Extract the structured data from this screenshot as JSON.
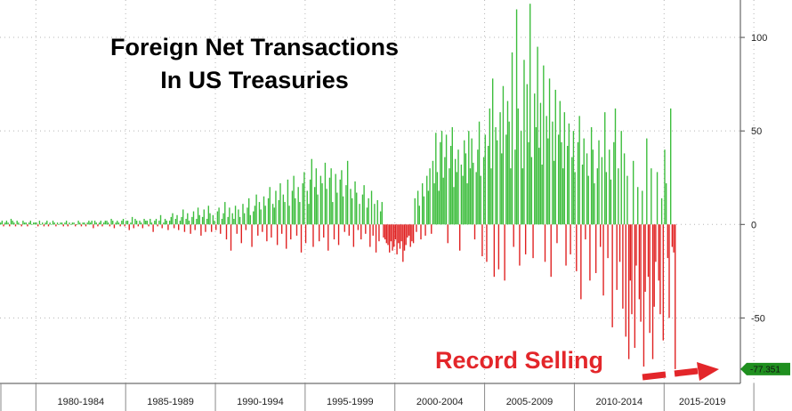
{
  "chart_data": {
    "type": "bar",
    "title": "Foreign Net Transactions\nIn US Treasuries",
    "title_lines": [
      "Foreign Net Transactions",
      "In US Treasuries"
    ],
    "xlabel": "",
    "ylabel": "",
    "ylim": [
      -85,
      120
    ],
    "y_ticks": [
      100,
      50,
      0,
      -50
    ],
    "y_tick_labels": [
      "100",
      "50",
      "0",
      "-50"
    ],
    "x_period_labels": [
      "1980-1984",
      "1985-1989",
      "1990-1994",
      "1995-1999",
      "2000-2004",
      "2005-2009",
      "2010-2014",
      "2015-2019"
    ],
    "x_start_year": 1978,
    "x_end_year": 2019.25,
    "grid": true,
    "positive_color": "#3cbd3c",
    "negative_color": "#e02020",
    "last_value": -77.351,
    "last_value_label": "-77.351",
    "last_value_color": "#1f8f1f",
    "annotation": {
      "text": "Record Selling",
      "color": "#e3262a"
    },
    "series": [
      {
        "frequency": "monthly",
        "start": "1978-01",
        "values": [
          1,
          2,
          -1,
          1,
          2,
          1,
          -1,
          3,
          2,
          1,
          -1,
          2,
          1,
          0,
          -1,
          2,
          1,
          1,
          -1,
          1,
          2,
          0,
          1,
          1,
          1,
          -1,
          2,
          0,
          1,
          -1,
          1,
          2,
          -1,
          1,
          0,
          2,
          1,
          -1,
          1,
          0,
          1,
          1,
          -1,
          1,
          2,
          -1,
          1,
          0,
          1,
          1,
          -1,
          0,
          2,
          1,
          -1,
          1,
          1,
          -1,
          1,
          2,
          1,
          2,
          -2,
          2,
          1,
          -1,
          1,
          2,
          -1,
          1,
          2,
          2,
          1,
          -1,
          3,
          2,
          -2,
          1,
          2,
          1,
          -1,
          2,
          3,
          -1,
          2,
          2,
          -3,
          1,
          4,
          -2,
          3,
          2,
          -1,
          2,
          1,
          -2,
          3,
          2,
          2,
          -1,
          3,
          1,
          -4,
          2,
          3,
          -1,
          2,
          5,
          -2,
          1,
          3,
          2,
          -3,
          2,
          4,
          6,
          -2,
          3,
          5,
          -3,
          2,
          4,
          8,
          -4,
          3,
          6,
          2,
          -5,
          4,
          7,
          -3,
          3,
          9,
          5,
          -6,
          4,
          8,
          -4,
          3,
          10,
          6,
          -4,
          5,
          2,
          -3,
          7,
          9,
          -5,
          3,
          6,
          12,
          -8,
          4,
          9,
          -14,
          6,
          3,
          10,
          -5,
          8,
          4,
          -10,
          11,
          6,
          -3,
          9,
          14,
          5,
          -12,
          7,
          10,
          16,
          -6,
          12,
          8,
          -4,
          15,
          10,
          -9,
          14,
          20,
          -7,
          11,
          9,
          18,
          -11,
          13,
          22,
          -5,
          16,
          12,
          -13,
          24,
          10,
          -8,
          18,
          26,
          14,
          -6,
          20,
          12,
          -15,
          22,
          28,
          -10,
          18,
          11,
          24,
          35,
          -12,
          20,
          30,
          16,
          -9,
          26,
          22,
          -7,
          33,
          19,
          -14,
          25,
          30,
          12,
          -8,
          27,
          17,
          -11,
          24,
          29,
          15,
          -4,
          21,
          34,
          -6,
          19,
          14,
          -12,
          23,
          17,
          -3,
          11,
          -8,
          16,
          21,
          -5,
          9,
          14,
          -12,
          18,
          -6,
          11,
          -15,
          13,
          -9,
          7,
          12,
          -7,
          -8,
          -10,
          -11,
          -15,
          -9,
          -14,
          -12,
          -8,
          -16,
          -10,
          -13,
          -9,
          -20,
          -14,
          -11,
          -7,
          -6,
          -12,
          -9,
          -10,
          14,
          -4,
          18,
          10,
          -8,
          22,
          15,
          -6,
          26,
          18,
          30,
          -5,
          34,
          22,
          49,
          28,
          18,
          44,
          50,
          25,
          36,
          48,
          -10,
          30,
          42,
          52,
          20,
          35,
          28,
          40,
          -14,
          32,
          26,
          45,
          38,
          22,
          50,
          30,
          46,
          33,
          -8,
          28,
          40,
          55,
          26,
          -17,
          36,
          48,
          -20,
          42,
          62,
          30,
          78,
          -28,
          52,
          45,
          -24,
          60,
          38,
          74,
          -30,
          48,
          66,
          55,
          30,
          92,
          -12,
          40,
          115,
          62,
          -22,
          50,
          30,
          88,
          -16,
          75,
          44,
          118,
          36,
          -18,
          70,
          52,
          95,
          41,
          65,
          32,
          85,
          -20,
          58,
          46,
          78,
          -28,
          55,
          34,
          72,
          -10,
          48,
          66,
          44,
          30,
          60,
          -22,
          42,
          54,
          -16,
          36,
          50,
          28,
          -25,
          44,
          58,
          -40,
          32,
          46,
          -8,
          38,
          26,
          -30,
          52,
          40,
          22,
          -26,
          30,
          45,
          -12,
          36,
          -38,
          60,
          28,
          -18,
          40,
          24,
          -55,
          44,
          62,
          -35,
          30,
          -20,
          50,
          -45,
          38,
          -60,
          26,
          -72,
          -30,
          -48,
          34,
          -66,
          -22,
          20,
          -40,
          -52,
          18,
          -76,
          -36,
          46,
          -28,
          -58,
          30,
          -72,
          -44,
          -20,
          28,
          -30,
          -48,
          14,
          -62,
          40,
          22,
          -18,
          -50,
          62,
          -12,
          -15,
          -77.351
        ]
      }
    ]
  }
}
